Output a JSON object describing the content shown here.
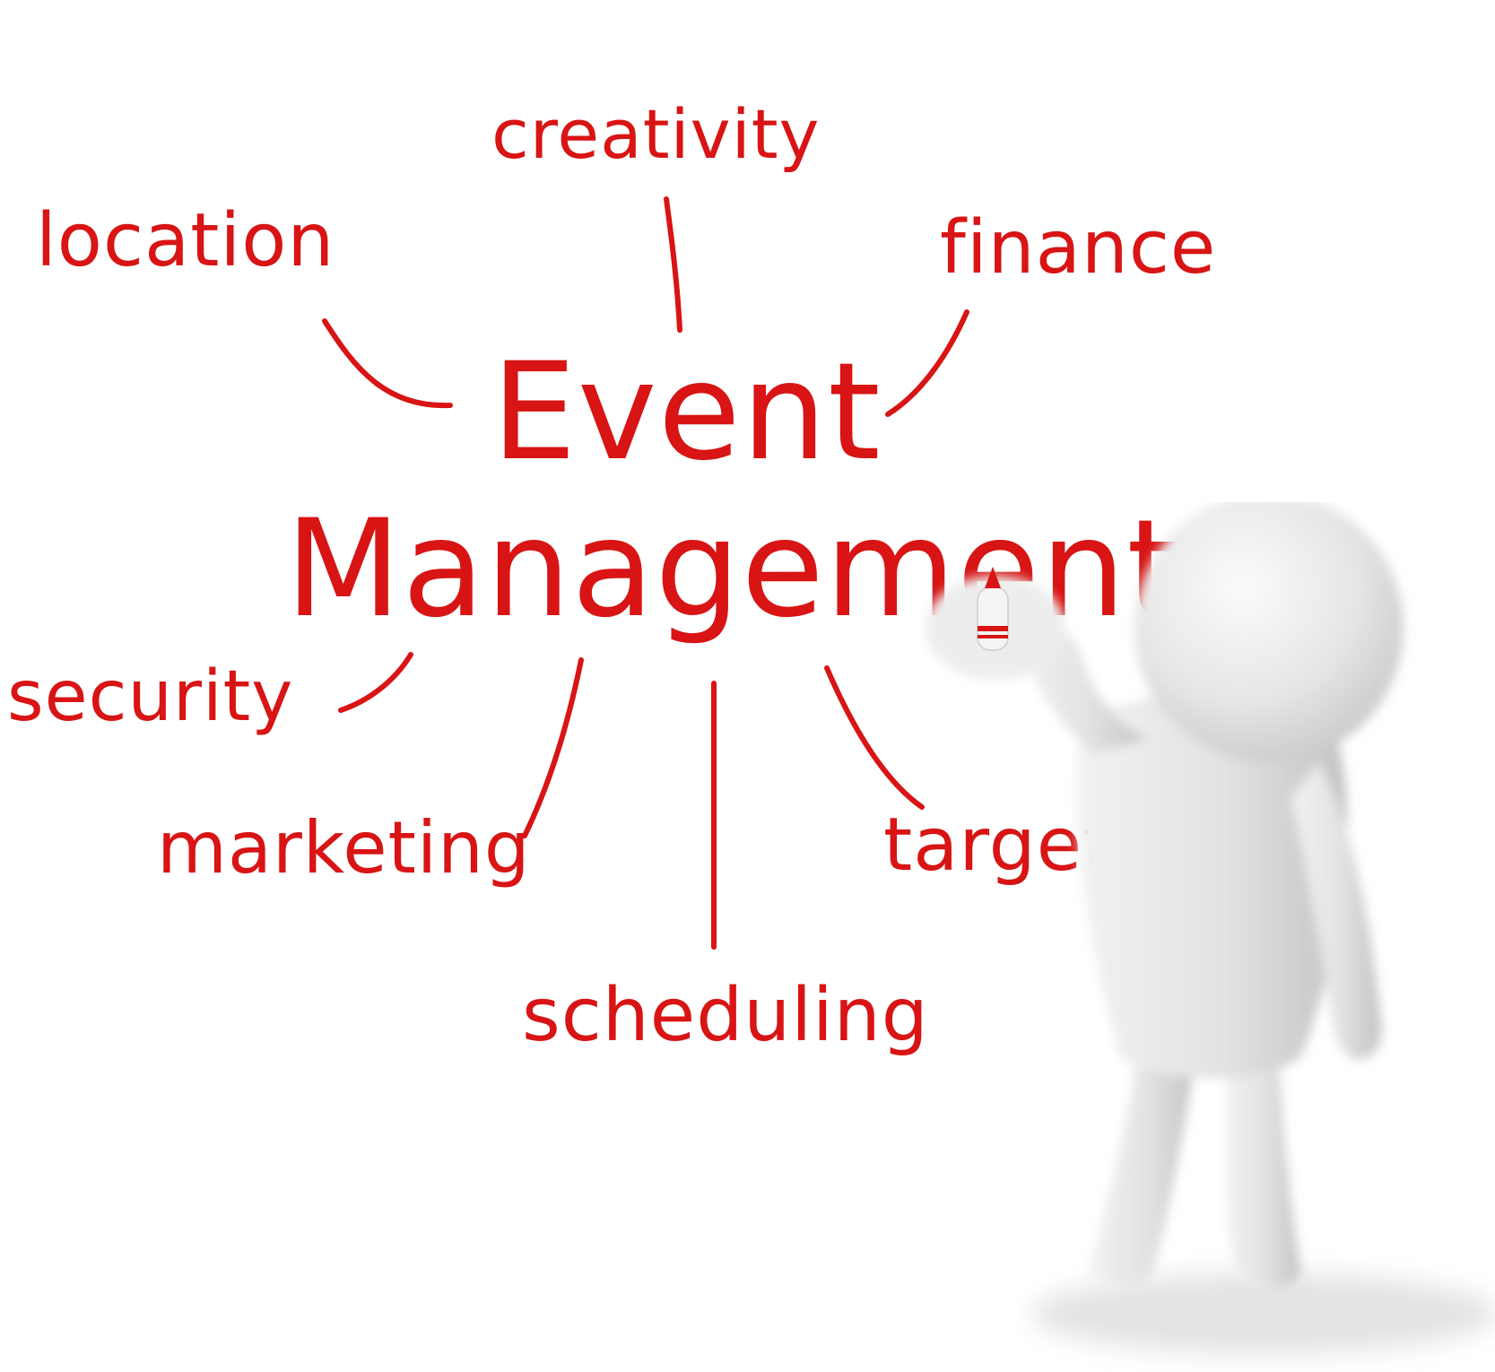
{
  "diagram": {
    "center": {
      "line1": "Event",
      "line2": "Management"
    },
    "nodes": {
      "creativity": "creativity",
      "location": "location",
      "finance": "finance",
      "security": "security",
      "marketing": "marketing",
      "target": "target",
      "scheduling": "scheduling"
    }
  },
  "colors": {
    "ink": "#d81414",
    "figure_body": "#e9e9e9",
    "figure_shadow": "#c4c4c4",
    "background": "#ffffff"
  },
  "illustration": {
    "figure": "3d-person-writing-icon",
    "marker": "marker-pen-icon"
  }
}
